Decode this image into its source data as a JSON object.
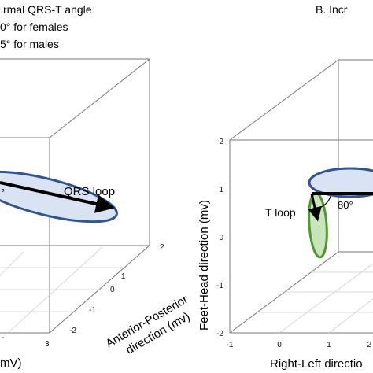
{
  "panel_a": {
    "title_lines": [
      "rmal QRS-T angle",
      "0° for females",
      "5° for males"
    ],
    "loop_label": "QRS loop",
    "angle_label": "°",
    "axis_label_ap_line1": "Anterior-Posterior",
    "axis_label_ap_line2": "direction (mv)",
    "axis_label_bottom": "mV)",
    "ap_ticks": [
      "2",
      "1",
      "0",
      "-1",
      "-2"
    ],
    "bottom_ticks": [
      "3"
    ],
    "left_edge_tick": "-"
  },
  "panel_b": {
    "title": "B. Incr",
    "angle_label": "80°",
    "t_loop_label": "T loop",
    "axis_label_fh": "Feet-Head direction (mv)",
    "axis_label_rl": "Right-Left directio",
    "fh_ticks": [
      "2",
      "1",
      "0",
      "-1",
      "-2"
    ],
    "rl_ticks": [
      "-1",
      "0",
      "1",
      "2"
    ]
  },
  "colors": {
    "qrs_loop_stroke": "#2f5597",
    "qrs_loop_fill": "#dae3f3",
    "t_loop_stroke": "#4e9a2a",
    "t_loop_fill": "#c8e4bb",
    "qrs_label": "#2f5597",
    "t_label": "#4e9a2a",
    "arrow": "#000000"
  }
}
